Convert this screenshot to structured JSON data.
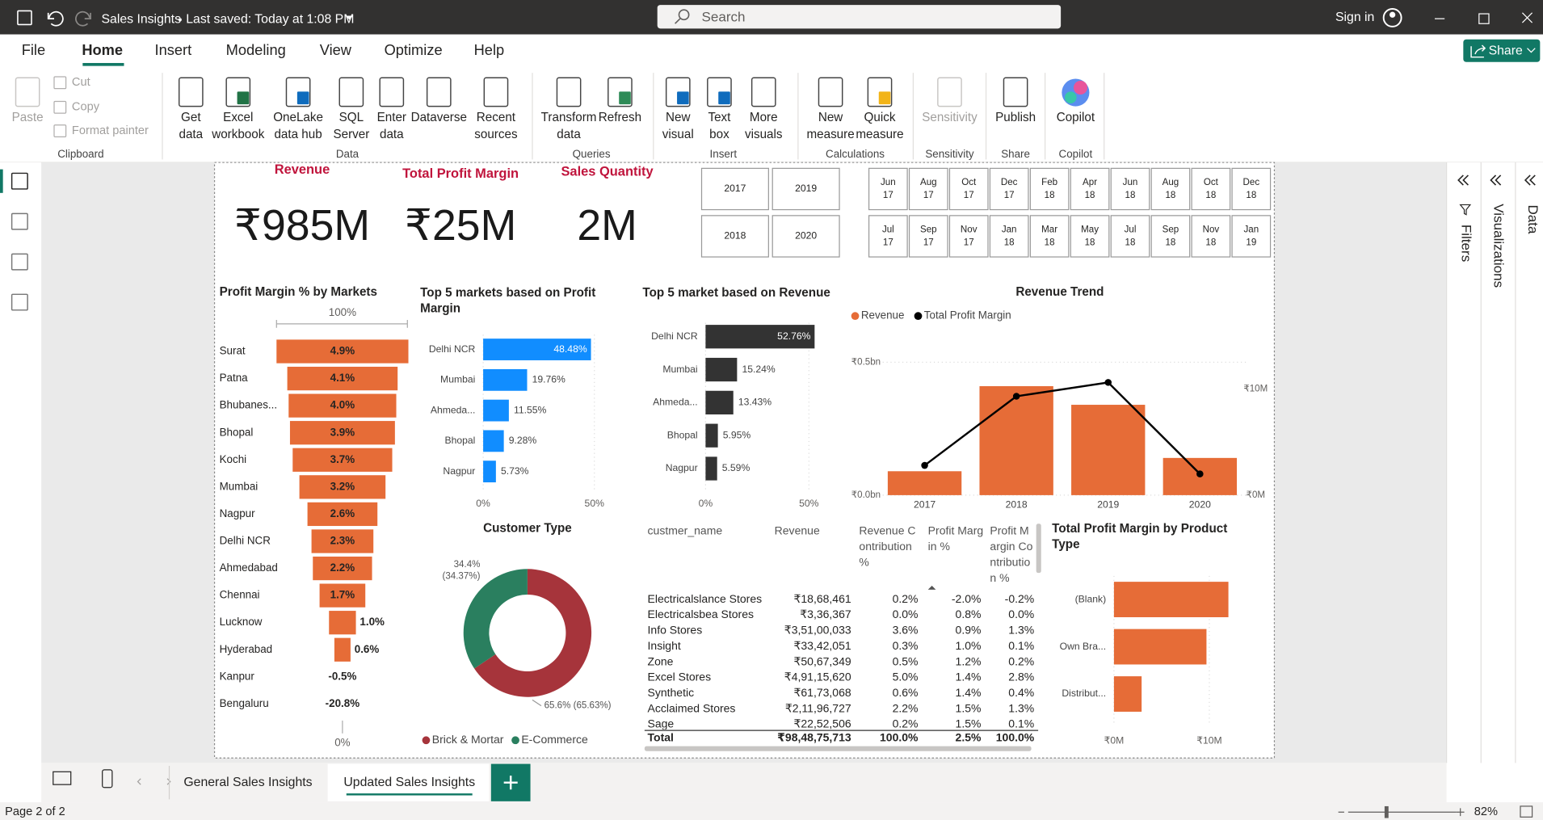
{
  "titlebar": {
    "file_name": "Sales Insights",
    "saved": "Last saved: Today at 1:08 PM",
    "search": "Search",
    "sign_in": "Sign in"
  },
  "menu": {
    "items": [
      "File",
      "Home",
      "Insert",
      "Modeling",
      "View",
      "Optimize",
      "Help"
    ],
    "share": "Share"
  },
  "ribbon": {
    "groups": [
      {
        "name": "Clipboard",
        "items": [
          [
            "Paste"
          ],
          [
            "Cut"
          ],
          [
            "Copy"
          ],
          [
            "Format painter"
          ]
        ]
      },
      {
        "name": "Data",
        "items": [
          [
            "Get",
            "data"
          ],
          [
            "Excel",
            "workbook"
          ],
          [
            "OneLake",
            "data hub"
          ],
          [
            "SQL",
            "Server"
          ],
          [
            "Enter",
            "data"
          ],
          [
            "Dataverse"
          ],
          [
            "Recent",
            "sources"
          ]
        ]
      },
      {
        "name": "Queries",
        "items": [
          [
            "Transform",
            "data"
          ],
          [
            "Refresh"
          ]
        ]
      },
      {
        "name": "Insert",
        "items": [
          [
            "New",
            "visual"
          ],
          [
            "Text",
            "box"
          ],
          [
            "More",
            "visuals"
          ]
        ]
      },
      {
        "name": "Calculations",
        "items": [
          [
            "New",
            "measure"
          ],
          [
            "Quick",
            "measure"
          ]
        ]
      },
      {
        "name": "Sensitivity",
        "items": [
          [
            "Sensitivity"
          ]
        ]
      },
      {
        "name": "Share",
        "items": [
          [
            "Publish"
          ]
        ]
      },
      {
        "name": "Copilot",
        "items": [
          [
            "Copilot"
          ]
        ]
      }
    ]
  },
  "report": {
    "cards": [
      {
        "label": "Revenue",
        "value": "₹985M"
      },
      {
        "label": "Total Profit Margin",
        "value": "₹25M"
      },
      {
        "label": "Sales Quantity",
        "value": "2M"
      }
    ],
    "year_slicer": [
      "2017",
      "2019",
      "2018",
      "2020"
    ],
    "month_slicer": [
      "Jun 17",
      "Aug 17",
      "Oct 17",
      "Dec 17",
      "Feb 18",
      "Apr 18",
      "Jun 18",
      "Aug 18",
      "Oct 18",
      "Dec 18",
      "Jul 17",
      "Sep 17",
      "Nov 17",
      "Jan 18",
      "Mar 18",
      "May 18",
      "Jul 18",
      "Sep 18",
      "Nov 18",
      "Jan 19"
    ],
    "profit_margin_by_markets": {
      "type": "funnel",
      "title": "Profit Margin % by Markets",
      "top_label": "100%",
      "bottom_label": "0%",
      "categories": [
        "Surat",
        "Patna",
        "Bhubanes...",
        "Bhopal",
        "Kochi",
        "Mumbai",
        "Nagpur",
        "Delhi NCR",
        "Ahmedabad",
        "Chennai",
        "Lucknow",
        "Hyderabad",
        "Kanpur",
        "Bengaluru"
      ],
      "values": [
        4.9,
        4.1,
        4.0,
        3.9,
        3.7,
        3.2,
        2.6,
        2.3,
        2.2,
        1.7,
        1.0,
        0.6,
        -0.5,
        -20.8
      ],
      "value_labels": [
        "4.9%",
        "4.1%",
        "4.0%",
        "3.9%",
        "3.7%",
        "3.2%",
        "2.6%",
        "2.3%",
        "2.2%",
        "1.7%",
        "1.0%",
        "0.6%",
        "-0.5%",
        "-20.8%"
      ],
      "color": "#e66c37"
    },
    "top5_profit_margin": {
      "type": "bar",
      "title": "Top 5 markets based on Profit Margin",
      "categories": [
        "Delhi NCR",
        "Mumbai",
        "Ahmeda...",
        "Bhopal",
        "Nagpur"
      ],
      "values": [
        48.48,
        19.76,
        11.55,
        9.28,
        5.73
      ],
      "value_labels": [
        "48.48%",
        "19.76%",
        "11.55%",
        "9.28%",
        "5.73%"
      ],
      "color": "#118dff",
      "xlim": [
        0,
        50
      ],
      "xticks": [
        {
          "value": 0,
          "label": "0%"
        },
        {
          "value": 50,
          "label": "50%"
        }
      ]
    },
    "top5_revenue": {
      "type": "bar",
      "title": "Top 5 market based on Revenue",
      "categories": [
        "Delhi NCR",
        "Mumbai",
        "Ahmeda...",
        "Bhopal",
        "Nagpur"
      ],
      "values": [
        52.76,
        15.24,
        13.43,
        5.95,
        5.59
      ],
      "value_labels": [
        "52.76%",
        "15.24%",
        "13.43%",
        "5.95%",
        "5.59%"
      ],
      "color": "#333333",
      "xlim": [
        0,
        50
      ],
      "xticks": [
        {
          "value": 0,
          "label": "0%"
        },
        {
          "value": 50,
          "label": "50%"
        }
      ]
    },
    "revenue_trend": {
      "type": "combo",
      "title": "Revenue Trend",
      "categories": [
        "2017",
        "2018",
        "2019",
        "2020"
      ],
      "series": [
        {
          "name": "Revenue",
          "type": "bar",
          "color": "#e66c37",
          "values": [
            0.09,
            0.41,
            0.34,
            0.14
          ]
        },
        {
          "name": "Total Profit Margin",
          "type": "line",
          "axis": "y2",
          "color": "#000000",
          "values": [
            2.8,
            9.3,
            10.6,
            2.0
          ]
        }
      ],
      "ylim": [
        0,
        0.6
      ],
      "yticks": [
        {
          "value": 0,
          "label": "₹0.0bn"
        },
        {
          "value": 0.5,
          "label": "₹0.5bn"
        }
      ],
      "y2lim": [
        0,
        15
      ],
      "y2ticks": [
        {
          "value": 0,
          "label": "₹0M"
        },
        {
          "value": 10,
          "label": "₹10M"
        }
      ],
      "grid": true
    },
    "customer_type": {
      "type": "donut",
      "title": "Customer Type",
      "categories": [
        "Brick & Mortar",
        "E-Commerce"
      ],
      "values": [
        65.63,
        34.37
      ],
      "value_labels": [
        "65.6% (65.63%)",
        "34.4% (34.37%)"
      ],
      "colors": [
        "#a6343b",
        "#2a7f5f"
      ]
    },
    "customer_table": {
      "columns": [
        "custmer_name",
        "Revenue",
        "Revenue Contribution %",
        "Profit Margin %",
        "Profit Margin Contribution %"
      ],
      "rows": [
        [
          "Electricalslance Stores",
          "₹18,68,461",
          "0.2%",
          "-2.0%",
          "-0.2%"
        ],
        [
          "Electricalsbea Stores",
          "₹3,36,367",
          "0.0%",
          "0.8%",
          "0.0%"
        ],
        [
          "Info Stores",
          "₹3,51,00,033",
          "3.6%",
          "0.9%",
          "1.3%"
        ],
        [
          "Insight",
          "₹33,42,051",
          "0.3%",
          "1.0%",
          "0.1%"
        ],
        [
          "Zone",
          "₹50,67,349",
          "0.5%",
          "1.2%",
          "0.2%"
        ],
        [
          "Excel Stores",
          "₹4,91,15,620",
          "5.0%",
          "1.4%",
          "2.8%"
        ],
        [
          "Synthetic",
          "₹61,73,068",
          "0.6%",
          "1.4%",
          "0.4%"
        ],
        [
          "Acclaimed Stores",
          "₹2,11,96,727",
          "2.2%",
          "1.5%",
          "1.3%"
        ],
        [
          "Sage",
          "₹22,52,506",
          "0.2%",
          "1.5%",
          "0.1%"
        ]
      ],
      "total": [
        "Total",
        "₹98,48,75,713",
        "100.0%",
        "2.5%",
        "100.0%"
      ]
    },
    "profit_by_product_type": {
      "type": "bar",
      "title": "Total Profit Margin by Product Type",
      "categories": [
        "(Blank)",
        "Own Bra...",
        "Distribut..."
      ],
      "values": [
        12.0,
        9.7,
        2.9
      ],
      "color": "#e66c37",
      "xlim": [
        0,
        13
      ],
      "xticks": [
        {
          "value": 0,
          "label": "₹0M"
        },
        {
          "value": 10,
          "label": "₹10M"
        }
      ]
    }
  },
  "panes": [
    "Filters",
    "Visualizations",
    "Data"
  ],
  "page_tabs": [
    "General Sales Insights",
    "Updated Sales Insights"
  ],
  "status": {
    "page": "Page 2 of 2",
    "zoom": "82%"
  }
}
